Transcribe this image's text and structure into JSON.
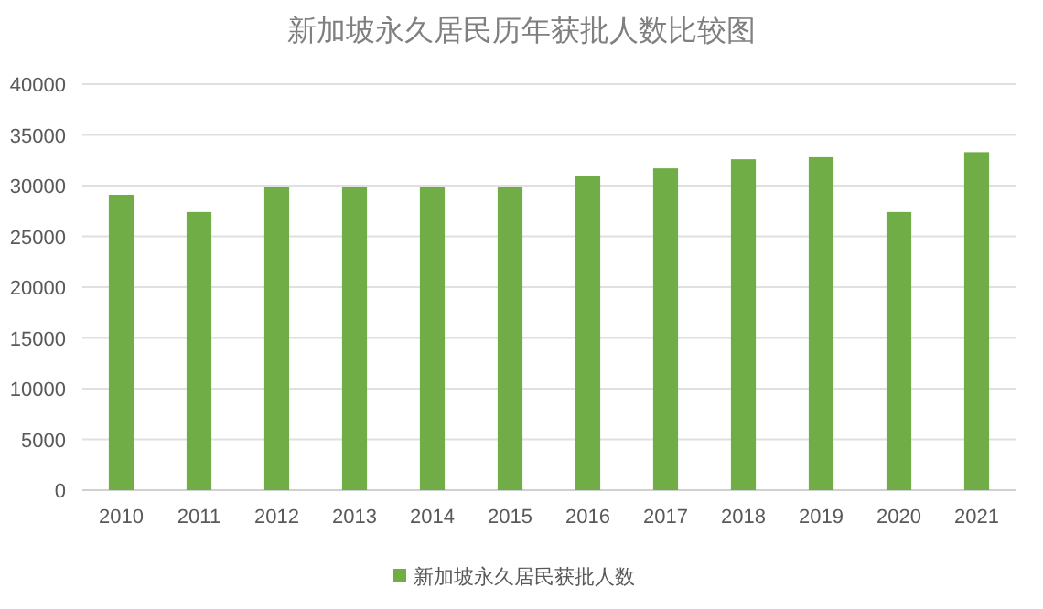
{
  "chart_data": {
    "type": "bar",
    "title": "新加坡永久居民历年获批人数比较图",
    "categories": [
      "2010",
      "2011",
      "2012",
      "2013",
      "2014",
      "2015",
      "2016",
      "2017",
      "2018",
      "2019",
      "2020",
      "2021"
    ],
    "series": [
      {
        "name": "新加坡永久居民获批人数",
        "color": "#70ad47",
        "values": [
          29100,
          27400,
          29900,
          29900,
          29900,
          29900,
          30900,
          31700,
          32600,
          32800,
          27400,
          33300
        ]
      }
    ],
    "ylim": [
      0,
      40000
    ],
    "yticks": [
      0,
      5000,
      10000,
      15000,
      20000,
      25000,
      30000,
      35000,
      40000
    ],
    "grid": "y",
    "legend": "bottom"
  }
}
